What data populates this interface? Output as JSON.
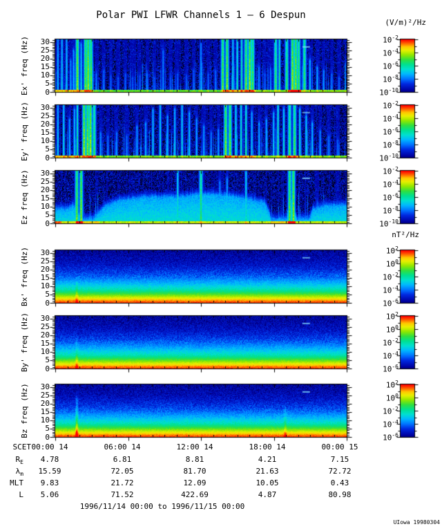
{
  "header": {
    "title": "Polar PWI LFWR Channels 1 — 6 Despun",
    "e_units": "(V/m)²/Hz",
    "b_units": "nT²/Hz"
  },
  "chart_data": {
    "type": "heatmap",
    "subtype": "spectrogram",
    "x_axis": {
      "prefix": "SCET",
      "tick_labels": [
        "00:00 14",
        "06:00 14",
        "12:00 14",
        "18:00 14",
        "00:00 15"
      ],
      "range_hours": [
        0,
        24
      ]
    },
    "y_axis": {
      "ticks": [
        0,
        5,
        10,
        15,
        20,
        25,
        30
      ],
      "max": 31.5,
      "unit": "Hz"
    },
    "colorbar_e": {
      "base": "10",
      "exponents": [
        "-2",
        "-4",
        "-6",
        "-8",
        "-10"
      ],
      "units": "(V/m)²/Hz"
    },
    "colorbar_b": {
      "base": "10",
      "exponents": [
        "2",
        "0",
        "-2",
        "-4",
        "-6"
      ],
      "units": "nT²/Hz"
    },
    "panels": [
      {
        "ylabel": "Ex' freq (Hz)",
        "kind": "E",
        "group": "e",
        "seed": 101,
        "bursts": [
          [
            0.008,
            31,
            0.45
          ],
          [
            0.022,
            31,
            0.5
          ],
          [
            0.038,
            31,
            0.5
          ],
          [
            0.052,
            18,
            0.4
          ],
          [
            0.062,
            24,
            0.45
          ],
          [
            0.075,
            31,
            0.9
          ],
          [
            0.088,
            28,
            0.5
          ],
          [
            0.103,
            31,
            0.85
          ],
          [
            0.112,
            31,
            0.95
          ],
          [
            0.122,
            31,
            0.85
          ],
          [
            0.14,
            10,
            0.35
          ],
          [
            0.165,
            12,
            0.3
          ],
          [
            0.19,
            9,
            0.3
          ],
          [
            0.215,
            8,
            0.28
          ],
          [
            0.24,
            10,
            0.3
          ],
          [
            0.265,
            8,
            0.28
          ],
          [
            0.29,
            9,
            0.3
          ],
          [
            0.315,
            10,
            0.32
          ],
          [
            0.34,
            8,
            0.28
          ],
          [
            0.37,
            24,
            0.35
          ],
          [
            0.395,
            8,
            0.28
          ],
          [
            0.42,
            10,
            0.3
          ],
          [
            0.45,
            9,
            0.28
          ],
          [
            0.475,
            12,
            0.3
          ],
          [
            0.5,
            28,
            0.4
          ],
          [
            0.525,
            10,
            0.3
          ],
          [
            0.55,
            12,
            0.32
          ],
          [
            0.575,
            31,
            0.85
          ],
          [
            0.59,
            31,
            0.9
          ],
          [
            0.61,
            31,
            0.55
          ],
          [
            0.625,
            31,
            0.65
          ],
          [
            0.64,
            31,
            0.7
          ],
          [
            0.655,
            31,
            0.85
          ],
          [
            0.668,
            31,
            0.95
          ],
          [
            0.678,
            31,
            0.8
          ],
          [
            0.7,
            14,
            0.35
          ],
          [
            0.72,
            10,
            0.3
          ],
          [
            0.74,
            12,
            0.32
          ],
          [
            0.757,
            31,
            0.75
          ],
          [
            0.77,
            31,
            0.7
          ],
          [
            0.795,
            31,
            0.75
          ],
          [
            0.815,
            31,
            0.95
          ],
          [
            0.826,
            31,
            0.9
          ],
          [
            0.836,
            31,
            0.8
          ],
          [
            0.856,
            31,
            0.75
          ],
          [
            0.875,
            18,
            0.5
          ],
          [
            0.9,
            14,
            0.45
          ],
          [
            0.922,
            12,
            0.4
          ],
          [
            0.95,
            10,
            0.35
          ],
          [
            0.975,
            8,
            0.3
          ]
        ],
        "bottom": [
          [
            0,
            0.13,
            0.82
          ],
          [
            0.13,
            0.575,
            0.68
          ],
          [
            0.575,
            0.69,
            0.85
          ],
          [
            0.69,
            0.8,
            0.7
          ],
          [
            0.8,
            0.845,
            0.95
          ],
          [
            0.845,
            1,
            0.72
          ]
        ],
        "artifact": [
          0.848,
          27,
          0.5
        ]
      },
      {
        "ylabel": "Ey' freq (Hz)",
        "kind": "E",
        "group": "e",
        "seed": 202,
        "bursts": [
          [
            0.008,
            31,
            0.5
          ],
          [
            0.028,
            31,
            0.55
          ],
          [
            0.048,
            22,
            0.45
          ],
          [
            0.065,
            28,
            0.5
          ],
          [
            0.075,
            31,
            0.7
          ],
          [
            0.098,
            31,
            0.95
          ],
          [
            0.11,
            31,
            0.9
          ],
          [
            0.12,
            31,
            0.95
          ],
          [
            0.133,
            31,
            0.75
          ],
          [
            0.155,
            14,
            0.4
          ],
          [
            0.18,
            12,
            0.35
          ],
          [
            0.21,
            14,
            0.38
          ],
          [
            0.245,
            12,
            0.35
          ],
          [
            0.28,
            18,
            0.42
          ],
          [
            0.31,
            20,
            0.45
          ],
          [
            0.335,
            28,
            0.5
          ],
          [
            0.36,
            31,
            0.55
          ],
          [
            0.385,
            24,
            0.45
          ],
          [
            0.41,
            28,
            0.5
          ],
          [
            0.435,
            31,
            0.55
          ],
          [
            0.46,
            26,
            0.5
          ],
          [
            0.485,
            22,
            0.45
          ],
          [
            0.51,
            18,
            0.42
          ],
          [
            0.535,
            14,
            0.38
          ],
          [
            0.56,
            16,
            0.4
          ],
          [
            0.585,
            31,
            0.9
          ],
          [
            0.6,
            31,
            0.85
          ],
          [
            0.62,
            31,
            0.6
          ],
          [
            0.638,
            31,
            0.65
          ],
          [
            0.655,
            31,
            0.7
          ],
          [
            0.675,
            26,
            0.5
          ],
          [
            0.7,
            20,
            0.45
          ],
          [
            0.725,
            22,
            0.46
          ],
          [
            0.75,
            26,
            0.5
          ],
          [
            0.765,
            31,
            0.7
          ],
          [
            0.785,
            28,
            0.6
          ],
          [
            0.805,
            31,
            0.75
          ],
          [
            0.822,
            31,
            0.8
          ],
          [
            0.84,
            28,
            0.6
          ],
          [
            0.862,
            24,
            0.55
          ],
          [
            0.883,
            20,
            0.5
          ],
          [
            0.91,
            15,
            0.4
          ],
          [
            0.94,
            12,
            0.35
          ],
          [
            0.97,
            10,
            0.3
          ]
        ],
        "bottom": [
          [
            0,
            0.14,
            0.85
          ],
          [
            0.14,
            0.58,
            0.7
          ],
          [
            0.58,
            0.69,
            0.85
          ],
          [
            0.69,
            0.79,
            0.72
          ],
          [
            0.79,
            0.84,
            0.88
          ],
          [
            0.84,
            1,
            0.72
          ]
        ],
        "artifact": [
          0.848,
          27,
          0.35
        ]
      },
      {
        "ylabel": "Ez freq (Hz)",
        "kind": "Ez",
        "group": "e",
        "seed": 303,
        "bursts": [
          [
            0.073,
            31,
            0.85
          ],
          [
            0.088,
            31,
            0.9
          ],
          [
            0.42,
            31,
            0.6
          ],
          [
            0.5,
            31,
            0.75
          ],
          [
            0.565,
            24,
            0.4
          ],
          [
            0.59,
            26,
            0.45
          ],
          [
            0.655,
            30,
            0.6
          ],
          [
            0.805,
            31,
            0.85
          ],
          [
            0.818,
            31,
            0.9
          ],
          [
            0.9,
            12,
            0.3
          ],
          [
            0.97,
            10,
            0.3
          ]
        ],
        "wash": [
          [
            0,
            8
          ],
          [
            0.045,
            8
          ],
          [
            0.06,
            11
          ],
          [
            0.09,
            2
          ],
          [
            0.13,
            2
          ],
          [
            0.165,
            9
          ],
          [
            0.22,
            13
          ],
          [
            0.3,
            15
          ],
          [
            0.42,
            15
          ],
          [
            0.5,
            17
          ],
          [
            0.6,
            16
          ],
          [
            0.66,
            14
          ],
          [
            0.72,
            12
          ],
          [
            0.742,
            2
          ],
          [
            0.796,
            2
          ],
          [
            0.803,
            13
          ],
          [
            0.818,
            13
          ],
          [
            0.828,
            2
          ],
          [
            0.872,
            2
          ],
          [
            0.885,
            8
          ],
          [
            0.93,
            10
          ],
          [
            1,
            10
          ]
        ],
        "bottom": [
          [
            0,
            0.02,
            0.95
          ],
          [
            0.02,
            0.07,
            0.8
          ],
          [
            0.07,
            0.095,
            0.97
          ],
          [
            0.095,
            0.15,
            0.85
          ],
          [
            0.15,
            0.74,
            0.78
          ],
          [
            0.74,
            0.8,
            0.85
          ],
          [
            0.8,
            0.825,
            0.97
          ],
          [
            0.825,
            1,
            0.78
          ]
        ],
        "artifact": [
          0.848,
          27,
          0.55
        ]
      },
      {
        "ylabel": "Bx' freq (Hz)",
        "kind": "B",
        "group": "b",
        "seed": 404,
        "profile": [
          [
            0,
            0.97
          ],
          [
            1,
            0.93
          ],
          [
            2,
            0.87
          ],
          [
            3,
            0.81
          ],
          [
            4,
            0.75
          ],
          [
            5,
            0.69
          ],
          [
            6.5,
            0.61
          ],
          [
            8,
            0.54
          ],
          [
            10,
            0.47
          ],
          [
            12,
            0.41
          ],
          [
            15,
            0.33
          ],
          [
            18,
            0.27
          ],
          [
            22,
            0.21
          ],
          [
            26,
            0.17
          ],
          [
            31.5,
            0.14
          ]
        ],
        "spikes": [
          [
            0.073,
            11,
            0.1
          ]
        ],
        "artifact": [
          0.848,
          27,
          0.35
        ]
      },
      {
        "ylabel": "By' freq (Hz)",
        "kind": "B",
        "group": "b",
        "seed": 505,
        "profile": [
          [
            0,
            0.97
          ],
          [
            1,
            0.93
          ],
          [
            2,
            0.87
          ],
          [
            3,
            0.81
          ],
          [
            4,
            0.75
          ],
          [
            5,
            0.69
          ],
          [
            6.5,
            0.61
          ],
          [
            8,
            0.54
          ],
          [
            10,
            0.47
          ],
          [
            12,
            0.41
          ],
          [
            15,
            0.33
          ],
          [
            18,
            0.27
          ],
          [
            22,
            0.21
          ],
          [
            26,
            0.17
          ],
          [
            31.5,
            0.14
          ]
        ],
        "spikes": [
          [
            0.073,
            14,
            0.12
          ]
        ],
        "artifact": [
          0.848,
          27,
          0.45
        ]
      },
      {
        "ylabel": "Bz freq (Hz)",
        "kind": "B",
        "group": "b",
        "seed": 606,
        "profile": [
          [
            0,
            0.97
          ],
          [
            1,
            0.93
          ],
          [
            2,
            0.87
          ],
          [
            3,
            0.81
          ],
          [
            4,
            0.75
          ],
          [
            5,
            0.69
          ],
          [
            6.5,
            0.61
          ],
          [
            8,
            0.54
          ],
          [
            10,
            0.47
          ],
          [
            12,
            0.41
          ],
          [
            15,
            0.33
          ],
          [
            18,
            0.27
          ],
          [
            22,
            0.21
          ],
          [
            26,
            0.17
          ],
          [
            31.5,
            0.14
          ]
        ],
        "spikes": [
          [
            0.073,
            22,
            0.22
          ],
          [
            0.79,
            16,
            0.1
          ]
        ],
        "artifact": [
          0.848,
          27,
          0.5
        ]
      }
    ],
    "ephemeris": {
      "rows": [
        {
          "label": "R",
          "sub": "E",
          "values": [
            "4.78",
            "6.81",
            "8.81",
            "4.21",
            "7.15"
          ]
        },
        {
          "label": "λ",
          "sub": "m",
          "values": [
            "15.59",
            "72.05",
            "81.70",
            "21.63",
            "72.72"
          ]
        },
        {
          "label": "MLT",
          "sub": "",
          "values": [
            "9.83",
            "21.72",
            "12.09",
            "10.05",
            "0.43"
          ]
        },
        {
          "label": "L",
          "sub": "",
          "values": [
            "5.06",
            "71.52",
            "422.69",
            "4.87",
            "80.98"
          ]
        }
      ]
    }
  },
  "footer": {
    "range": "1996/11/14 00:00 to 1996/11/15 00:00",
    "credit": "UIowa 19980304"
  }
}
